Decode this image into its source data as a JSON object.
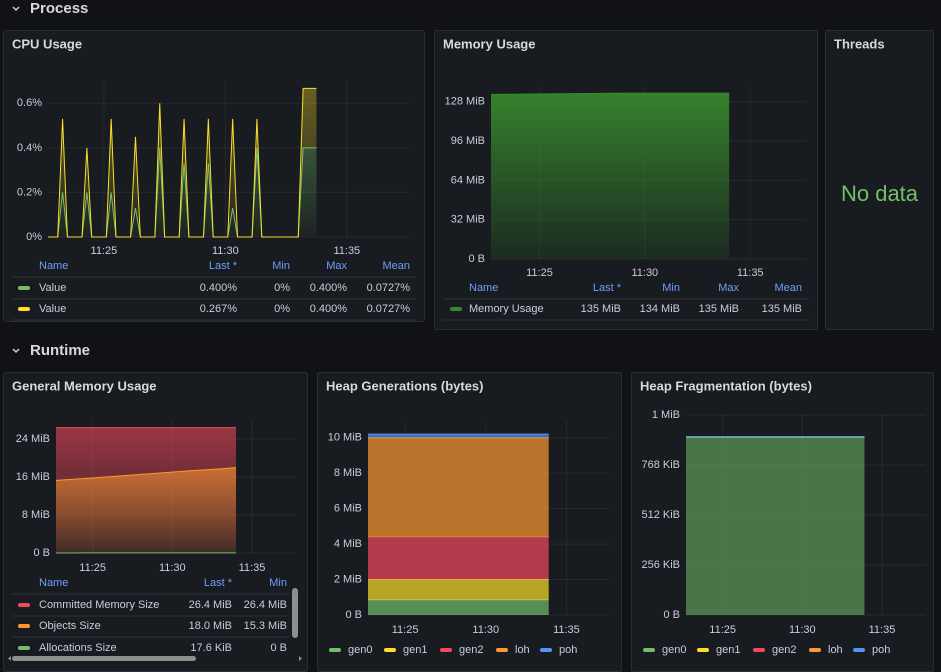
{
  "rows": [
    {
      "title": "Process"
    },
    {
      "title": "Runtime"
    }
  ],
  "panels": [
    {
      "title": "CPU Usage",
      "chart": {
        "type": "line",
        "stacked": true,
        "fill_opacity": 0.35,
        "fill_gradient": true,
        "grid": true,
        "x": [
          22.7,
          23.1,
          23.3,
          23.5,
          24.1,
          24.3,
          24.5,
          25.1,
          25.3,
          25.5,
          26.1,
          26.3,
          26.5,
          27.1,
          27.3,
          27.5,
          28.1,
          28.3,
          28.5,
          29.1,
          29.3,
          29.5,
          30.1,
          30.3,
          30.5,
          31.1,
          31.3,
          31.5,
          33.0,
          33.2,
          33.75
        ],
        "xlim": [
          22.7,
          37.6
        ],
        "xticks": [
          {
            "value": 25,
            "label": "11:25"
          },
          {
            "value": 30,
            "label": "11:30"
          },
          {
            "value": 35,
            "label": "11:35"
          }
        ],
        "ylim": [
          0,
          0.7
        ],
        "yticks": [
          {
            "value": 0,
            "label": "0%"
          },
          {
            "value": 0.2,
            "label": "0.2%"
          },
          {
            "value": 0.4,
            "label": "0.4%"
          },
          {
            "value": 0.6,
            "label": "0.6%"
          }
        ],
        "series": [
          {
            "name": "Value",
            "color": "#73bf69",
            "values": [
              0,
              0,
              0.2,
              0,
              0,
              0.2,
              0,
              0,
              0.2,
              0,
              0,
              0.13,
              0,
              0,
              0.4,
              0,
              0,
              0.33,
              0,
              0,
              0.33,
              0,
              0,
              0.13,
              0,
              0,
              0.4,
              0,
              0,
              0.4,
              0.4
            ]
          },
          {
            "name": "Value",
            "color": "#fade2a",
            "values": [
              0,
              0,
              0.33,
              0,
              0,
              0.2,
              0,
              0,
              0.33,
              0,
              0,
              0.32,
              0,
              0,
              0.2,
              0,
              0,
              0.2,
              0,
              0,
              0.2,
              0,
              0,
              0.4,
              0,
              0,
              0.13,
              0,
              0,
              0.267,
              0.267
            ]
          }
        ]
      },
      "legend": {
        "mode": "table",
        "columns": [
          "Name",
          "Last *",
          "Min",
          "Max",
          "Mean"
        ],
        "rows": [
          [
            "0.400%",
            "0%",
            "0.400%",
            "0.0727%"
          ],
          [
            "0.267%",
            "0%",
            "0.400%",
            "0.0727%"
          ]
        ]
      }
    },
    {
      "title": "Memory Usage",
      "chart": {
        "type": "line",
        "stacked": false,
        "fill_opacity": 0.95,
        "fill_gradient": true,
        "grid": true,
        "x": [
          22.7,
          26,
          29,
          32,
          34.0
        ],
        "xlim": [
          22.7,
          37.6
        ],
        "xticks": [
          {
            "value": 25,
            "label": "11:25"
          },
          {
            "value": 30,
            "label": "11:30"
          },
          {
            "value": 35,
            "label": "11:35"
          }
        ],
        "ylim": [
          0,
          140
        ],
        "yticks": [
          {
            "value": 0,
            "label": "0 B"
          },
          {
            "value": 32,
            "label": "32 MiB"
          },
          {
            "value": 64,
            "label": "64 MiB"
          },
          {
            "value": 96,
            "label": "96 MiB"
          },
          {
            "value": 128,
            "label": "128 MiB"
          }
        ],
        "series": [
          {
            "name": "Memory Usage",
            "color": "#37872d",
            "values": [
              134,
              134.5,
              135,
              135,
              135
            ]
          }
        ]
      },
      "legend": {
        "mode": "table",
        "columns": [
          "Name",
          "Last *",
          "Min",
          "Max",
          "Mean"
        ],
        "rows": [
          [
            "135 MiB",
            "134 MiB",
            "135 MiB",
            "135 MiB"
          ]
        ]
      }
    },
    {
      "title": "Threads",
      "message": "No data"
    },
    {
      "title": "General Memory Usage",
      "chart": {
        "type": "line",
        "stacked": false,
        "fill_opacity": 0.6,
        "fill_gradient": true,
        "grid": true,
        "x": [
          22.7,
          25,
          27,
          29,
          31,
          33,
          34.0
        ],
        "xlim": [
          22.7,
          37.7
        ],
        "xticks": [
          {
            "value": 25,
            "label": "11:25"
          },
          {
            "value": 30,
            "label": "11:30"
          },
          {
            "value": 35,
            "label": "11:35"
          }
        ],
        "ylim": [
          0,
          28
        ],
        "yticks": [
          {
            "value": 0,
            "label": "0 B"
          },
          {
            "value": 8,
            "label": "8 MiB"
          },
          {
            "value": 16,
            "label": "16 MiB"
          },
          {
            "value": 24,
            "label": "24 MiB"
          }
        ],
        "series": [
          {
            "name": "Committed Memory Size",
            "color": "#f2495c",
            "values": [
              26.4,
              26.4,
              26.4,
              26.4,
              26.4,
              26.4,
              26.4
            ]
          },
          {
            "name": "Objects Size",
            "color": "#ff9830",
            "values": [
              15.3,
              15.8,
              16.3,
              16.8,
              17.3,
              17.7,
              18.0
            ]
          },
          {
            "name": "Allocations Size",
            "color": "#73bf69",
            "values": [
              0,
              0.0172,
              0.0172,
              0.0172,
              0.0172,
              0.0172,
              0.0172
            ]
          }
        ]
      },
      "legend": {
        "mode": "table",
        "columns": [
          "Name",
          "Last *",
          "Min"
        ],
        "rows": [
          [
            "26.4 MiB",
            "26.4 MiB"
          ],
          [
            "18.0 MiB",
            "15.3 MiB"
          ],
          [
            "17.6 KiB",
            "0 B"
          ]
        ]
      }
    },
    {
      "title": "Heap Generations (bytes)",
      "chart": {
        "type": "line",
        "stacked": true,
        "fill_opacity": 0.7,
        "fill_gradient": false,
        "grid": true,
        "x": [
          22.7,
          33.9
        ],
        "xlim": [
          22.7,
          37.7
        ],
        "xticks": [
          {
            "value": 25,
            "label": "11:25"
          },
          {
            "value": 30,
            "label": "11:30"
          },
          {
            "value": 35,
            "label": "11:35"
          }
        ],
        "ylim": [
          0,
          11
        ],
        "yticks": [
          {
            "value": 0,
            "label": "0 B"
          },
          {
            "value": 2,
            "label": "2 MiB"
          },
          {
            "value": 4,
            "label": "4 MiB"
          },
          {
            "value": 6,
            "label": "6 MiB"
          },
          {
            "value": 8,
            "label": "8 MiB"
          },
          {
            "value": 10,
            "label": "10 MiB"
          }
        ],
        "series": [
          {
            "name": "gen0",
            "color": "#73bf69",
            "values": [
              0.85,
              0.85
            ]
          },
          {
            "name": "gen1",
            "color": "#fade2a",
            "values": [
              1.15,
              1.15
            ]
          },
          {
            "name": "gen2",
            "color": "#f2495c",
            "values": [
              2.4,
              2.4
            ]
          },
          {
            "name": "loh",
            "color": "#ff9830",
            "values": [
              5.6,
              5.6
            ]
          },
          {
            "name": "poh",
            "color": "#5794f2",
            "values": [
              0.2,
              0.2
            ]
          }
        ]
      },
      "legend": {
        "mode": "list"
      }
    },
    {
      "title": "Heap Fragmentation (bytes)",
      "chart": {
        "type": "line",
        "stacked": true,
        "fill_opacity": 0.55,
        "fill_gradient": false,
        "grid": true,
        "x": [
          22.7,
          33.9
        ],
        "xlim": [
          22.7,
          37.7
        ],
        "xticks": [
          {
            "value": 25,
            "label": "11:25"
          },
          {
            "value": 30,
            "label": "11:30"
          },
          {
            "value": 35,
            "label": "11:35"
          }
        ],
        "ylim": [
          0,
          1024
        ],
        "yticks": [
          {
            "value": 0,
            "label": "0 B"
          },
          {
            "value": 256,
            "label": "256 KiB"
          },
          {
            "value": 512,
            "label": "512 KiB"
          },
          {
            "value": 768,
            "label": "768 KiB"
          },
          {
            "value": 1024,
            "label": "1 MiB"
          }
        ],
        "series": [
          {
            "name": "gen0",
            "color": "#73bf69",
            "values": [
              910,
              910
            ]
          },
          {
            "name": "gen1",
            "color": "#fade2a",
            "values": [
              4,
              4
            ]
          },
          {
            "name": "gen2",
            "color": "#f2495c",
            "values": [
              0,
              0
            ]
          },
          {
            "name": "loh",
            "color": "#ff9830",
            "values": [
              0,
              0
            ]
          },
          {
            "name": "poh",
            "color": "#5794f2",
            "values": [
              0,
              0
            ]
          }
        ]
      },
      "legend": {
        "mode": "list"
      }
    }
  ]
}
